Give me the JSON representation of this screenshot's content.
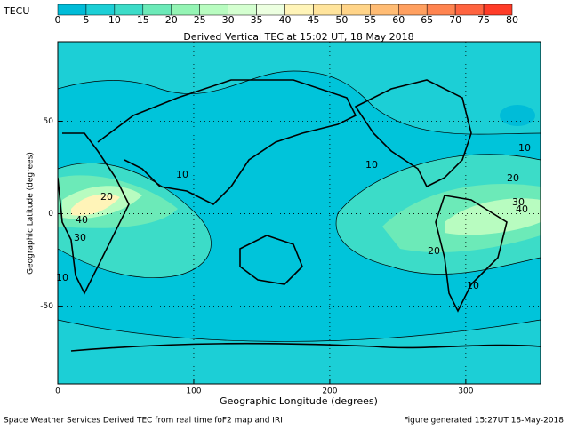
{
  "chart_data": {
    "type": "contour-map",
    "title": "Derived Vertical TEC at 15:02 UT, 18 May 2018",
    "xlabel": "Geographic Longitude (degrees)",
    "ylabel": "Geographic Latitude (degrees)",
    "xlim": [
      0,
      355
    ],
    "xticks": [
      0,
      100,
      200,
      300
    ],
    "ylim": [
      -92,
      93
    ],
    "yticks": [
      -50,
      0,
      50
    ],
    "grid": true,
    "colorbar": {
      "label": "TECU",
      "ticks": [
        0,
        5,
        10,
        15,
        20,
        25,
        30,
        35,
        40,
        45,
        50,
        55,
        60,
        65,
        70,
        75,
        80
      ],
      "colors": [
        "#00bcd8",
        "#1ccfd6",
        "#3cdcc8",
        "#6ceab8",
        "#94f4b4",
        "#b8fcc0",
        "#d4ffd0",
        "#ecffe0",
        "#fff4b8",
        "#ffe49c",
        "#ffd488",
        "#ffbc74",
        "#ffa060",
        "#ff8450",
        "#ff6440",
        "#ff3c28"
      ]
    },
    "contour_labels": [
      10,
      10,
      20,
      30,
      40,
      20,
      10,
      40,
      30,
      20,
      10,
      10
    ],
    "footer_left": "Space Weather Services Derived TEC from real time foF2 map and IRI",
    "footer_right": "Figure generated 15:27UT 18-May-2018"
  }
}
